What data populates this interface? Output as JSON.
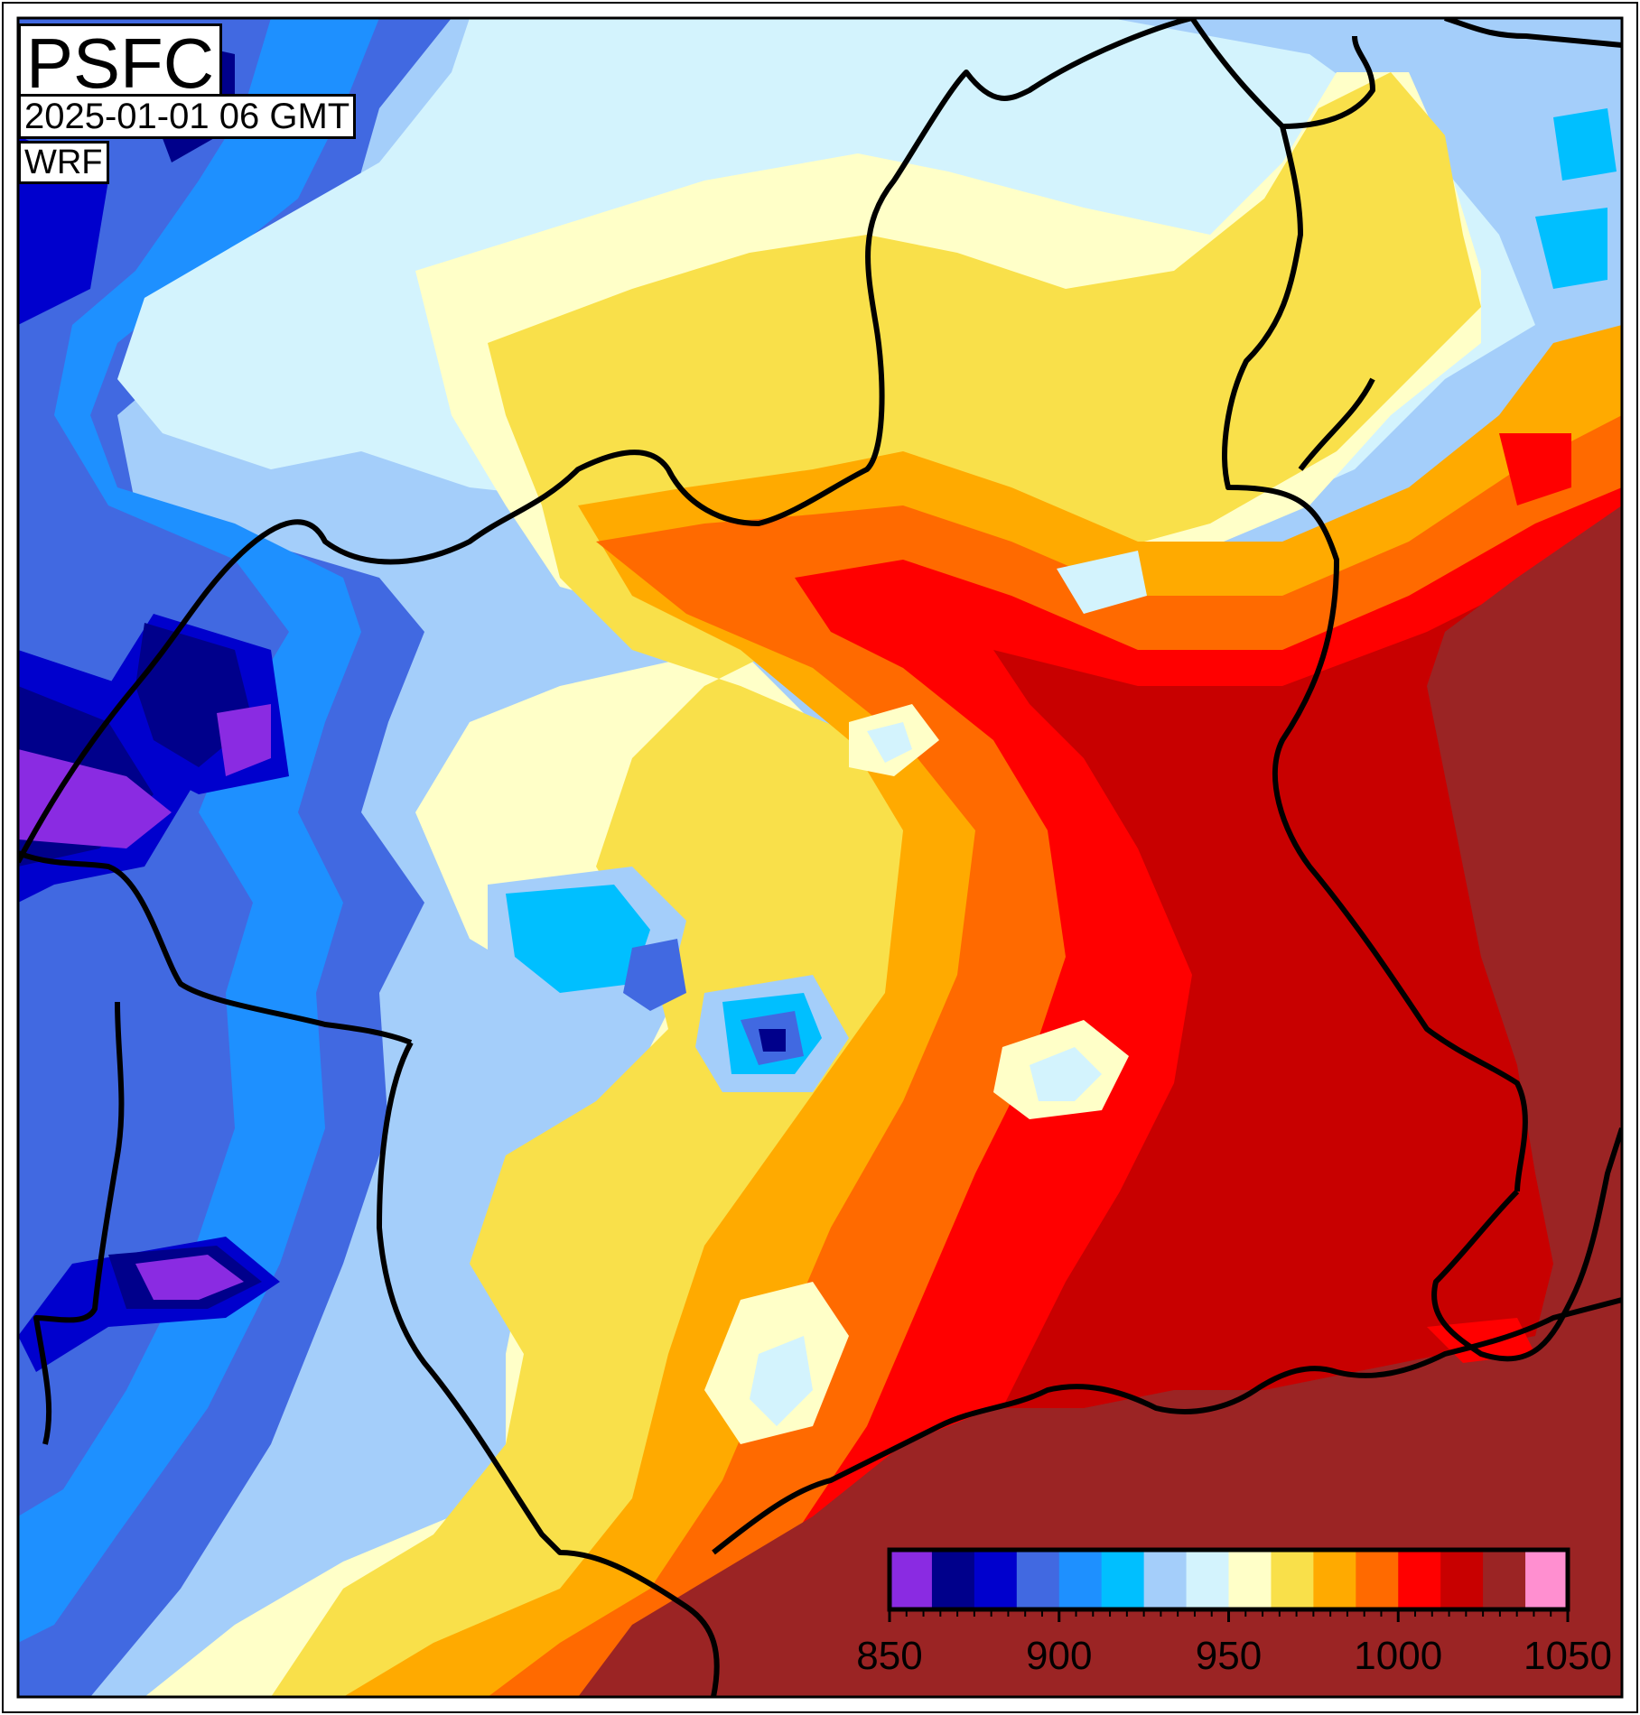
{
  "map": {
    "variable": "PSFC",
    "valid_time": "2025-01-01 06 GMT",
    "model": "WRF"
  },
  "colorbar": {
    "min": 850,
    "max": 1050,
    "step": 10,
    "tick_labels": [
      "850",
      "900",
      "950",
      "1000",
      "1050"
    ],
    "tick_values": [
      850,
      900,
      950,
      1000,
      1050
    ],
    "colors": [
      "#8a2be2",
      "#00008b",
      "#0000cd",
      "#4169e1",
      "#1e90ff",
      "#00bfff",
      "#a4cefa",
      "#d3f3fd",
      "#ffffc8",
      "#f9e04a",
      "#ffaa00",
      "#ff6a00",
      "#ff0000",
      "#c80000",
      "#9b2424",
      "#ff8fd0"
    ]
  },
  "field_colors": {
    "deep_violet": "#8a2be2",
    "navy": "#00008b",
    "dark_blue": "#0000cd",
    "royal_blue": "#4169e1",
    "dodger_blue": "#1e90ff",
    "sky_blue": "#00bfff",
    "light_blue": "#a4cefa",
    "pale_blue": "#d3f3fd",
    "cream": "#ffffc8",
    "yellow": "#f9e04a",
    "orange": "#ffaa00",
    "dark_orange": "#ff6a00",
    "red": "#ff0000",
    "dark_red": "#c80000",
    "maroon": "#9b2424"
  },
  "borders_color": "#000000"
}
